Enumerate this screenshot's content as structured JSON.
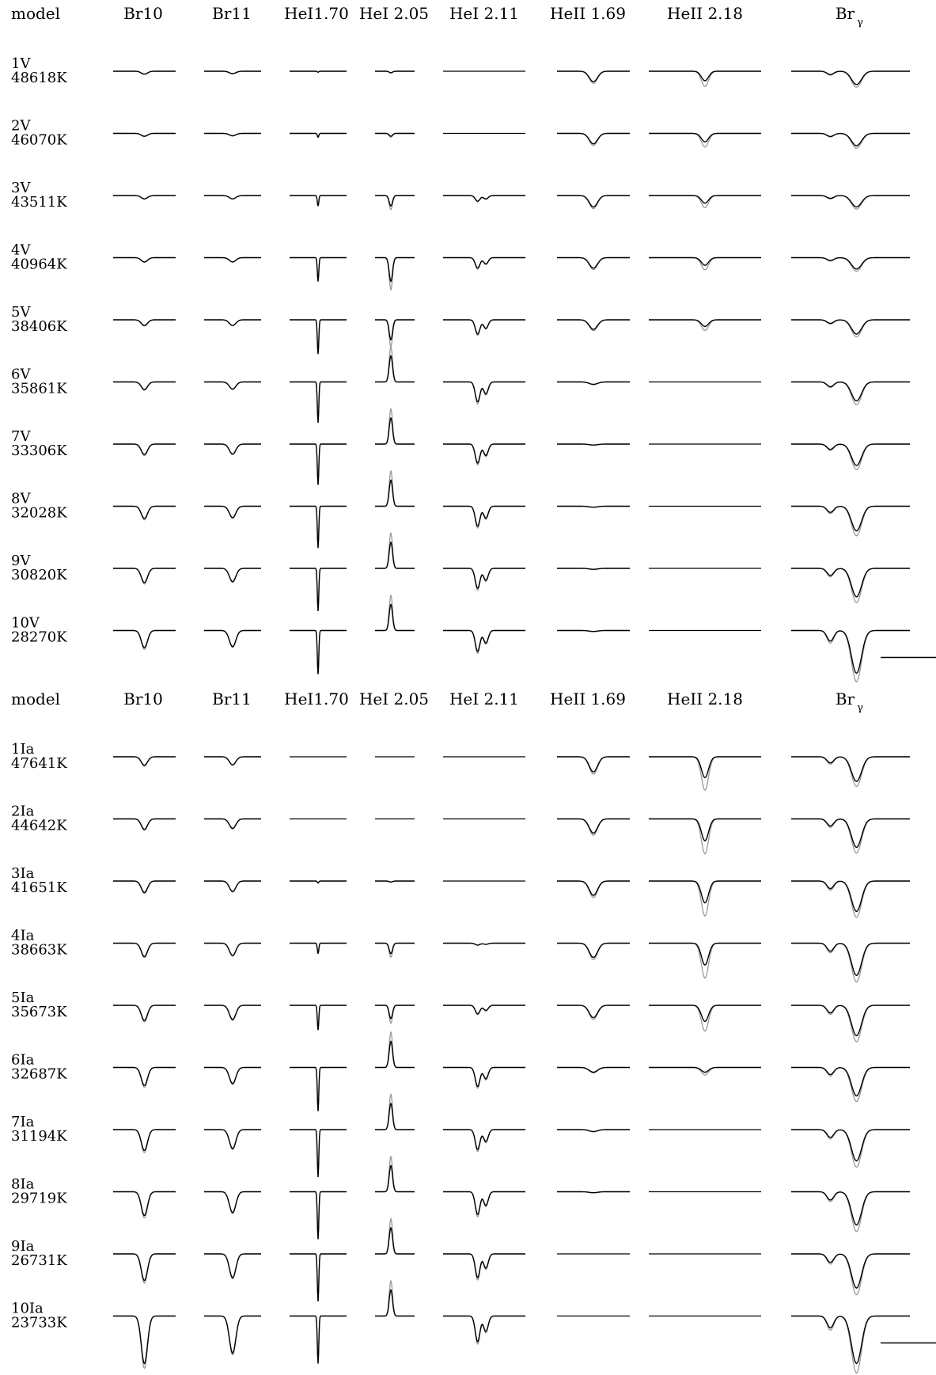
{
  "chart_data": [
    {
      "type": "line",
      "header_model": "model",
      "columns": [
        "Br10",
        "Br11",
        "HeI1.70",
        "HeI 2.05",
        "HeI 2.11",
        "HeII 1.69",
        "HeII 2.18",
        "Br",
        "γ"
      ],
      "models": [
        {
          "name": "1V",
          "teff": "48618K"
        },
        {
          "name": "2V",
          "teff": "46070K"
        },
        {
          "name": "3V",
          "teff": "43511K"
        },
        {
          "name": "4V",
          "teff": "40964K"
        },
        {
          "name": "5V",
          "teff": "38406K"
        },
        {
          "name": "6V",
          "teff": "35861K"
        },
        {
          "name": "7V",
          "teff": "33306K"
        },
        {
          "name": "8V",
          "teff": "32028K"
        },
        {
          "name": "9V",
          "teff": "30820K"
        },
        {
          "name": "10V",
          "teff": "28270K"
        }
      ],
      "series_colors": {
        "model": "#000000",
        "comparison": "#999999"
      },
      "black_depth": [
        [
          0.06,
          0.05,
          0.02,
          0.03,
          0.0,
          0.22,
          0.2,
          0.28
        ],
        [
          0.06,
          0.05,
          0.08,
          0.06,
          0.0,
          0.22,
          0.18,
          0.26
        ],
        [
          0.07,
          0.07,
          0.22,
          0.22,
          0.12,
          0.24,
          0.16,
          0.24
        ],
        [
          0.09,
          0.09,
          0.5,
          0.5,
          0.22,
          0.22,
          0.16,
          0.24
        ],
        [
          0.12,
          0.12,
          0.72,
          0.42,
          0.3,
          0.2,
          0.14,
          0.3
        ],
        [
          0.16,
          0.15,
          0.86,
          0.0,
          0.42,
          0.05,
          0.0,
          0.4
        ],
        [
          0.22,
          0.21,
          0.86,
          0.0,
          0.4,
          0.02,
          0.0,
          0.45
        ],
        [
          0.26,
          0.24,
          0.88,
          0.0,
          0.42,
          0.02,
          0.0,
          0.52
        ],
        [
          0.3,
          0.28,
          0.9,
          0.0,
          0.42,
          0.02,
          0.0,
          0.6
        ],
        [
          0.36,
          0.34,
          0.92,
          0.0,
          0.44,
          0.02,
          0.0,
          0.9
        ]
      ]
    },
    {
      "type": "line",
      "header_model": "model",
      "columns": [
        "Br10",
        "Br11",
        "HeI1.70",
        "HeI 2.05",
        "HeI 2.11",
        "HeII 1.69",
        "HeII 2.18",
        "Br",
        "γ"
      ],
      "models": [
        {
          "name": "1Ia",
          "teff": "47641K"
        },
        {
          "name": "2Ia",
          "teff": "44642K"
        },
        {
          "name": "3Ia",
          "teff": "41651K"
        },
        {
          "name": "4Ia",
          "teff": "38663K"
        },
        {
          "name": "5Ia",
          "teff": "35673K"
        },
        {
          "name": "6Ia",
          "teff": "32687K"
        },
        {
          "name": "7Ia",
          "teff": "31194K"
        },
        {
          "name": "8Ia",
          "teff": "29719K"
        },
        {
          "name": "9Ia",
          "teff": "26731K"
        },
        {
          "name": "10Ia",
          "teff": "23733K"
        }
      ],
      "series_colors": {
        "model": "#000000",
        "comparison": "#999999"
      },
      "black_depth": [
        [
          0.18,
          0.17,
          0.0,
          0.0,
          0.0,
          0.32,
          0.44,
          0.52
        ],
        [
          0.22,
          0.2,
          0.0,
          0.0,
          0.0,
          0.3,
          0.46,
          0.6
        ],
        [
          0.24,
          0.22,
          0.04,
          0.02,
          0.0,
          0.3,
          0.46,
          0.64
        ],
        [
          0.28,
          0.26,
          0.22,
          0.22,
          0.04,
          0.3,
          0.46,
          0.68
        ],
        [
          0.32,
          0.3,
          0.52,
          0.28,
          0.18,
          0.26,
          0.34,
          0.64
        ],
        [
          0.38,
          0.34,
          0.92,
          0.0,
          0.4,
          0.1,
          0.1,
          0.6
        ],
        [
          0.44,
          0.4,
          1.0,
          0.0,
          0.42,
          0.04,
          0.0,
          0.66
        ],
        [
          0.5,
          0.44,
          1.0,
          0.0,
          0.48,
          0.02,
          0.0,
          0.7
        ],
        [
          0.56,
          0.5,
          1.0,
          0.0,
          0.5,
          0.0,
          0.0,
          0.72
        ],
        [
          1.0,
          0.78,
          1.0,
          0.0,
          0.54,
          0.0,
          0.0,
          1.0
        ]
      ]
    }
  ]
}
